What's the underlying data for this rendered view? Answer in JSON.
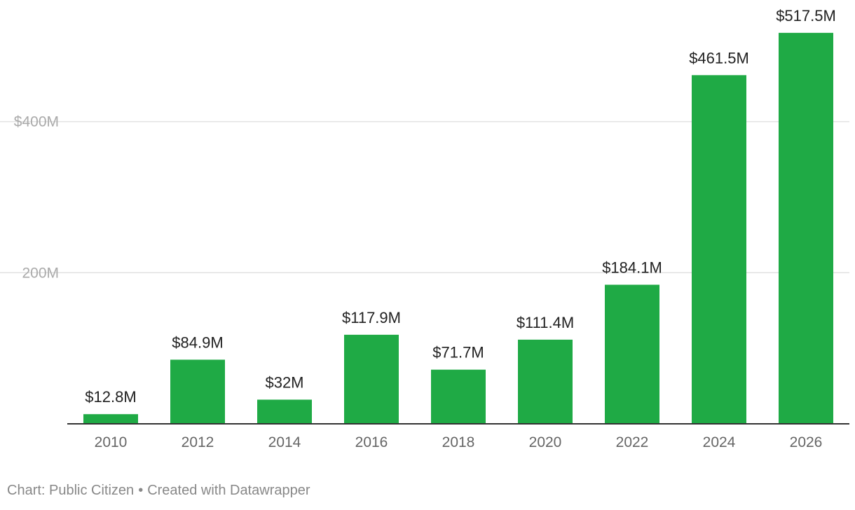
{
  "chart_data": {
    "type": "bar",
    "title": "",
    "xlabel": "",
    "ylabel": "",
    "categories": [
      "2010",
      "2012",
      "2014",
      "2016",
      "2018",
      "2020",
      "2022",
      "2024",
      "2026"
    ],
    "values": [
      12.8,
      84.9,
      32,
      117.9,
      71.7,
      111.4,
      184.1,
      461.5,
      517.5
    ],
    "data_labels": [
      "$12.8M",
      "$84.9M",
      "$32M",
      "$117.9M",
      "$71.7M",
      "$111.4M",
      "$184.1M",
      "$461.5M",
      "$517.5M"
    ],
    "unit": "millions of dollars",
    "ylim": [
      0,
      517.5
    ],
    "yticks": [
      {
        "value": 200,
        "label": "200M"
      },
      {
        "value": 400,
        "label": "$400M"
      }
    ],
    "grid": true,
    "legend": "none",
    "bar_color": "#1faa45"
  },
  "footer": {
    "source": "Chart: Public Citizen",
    "separator": "•",
    "credit": "Created with Datawrapper"
  }
}
